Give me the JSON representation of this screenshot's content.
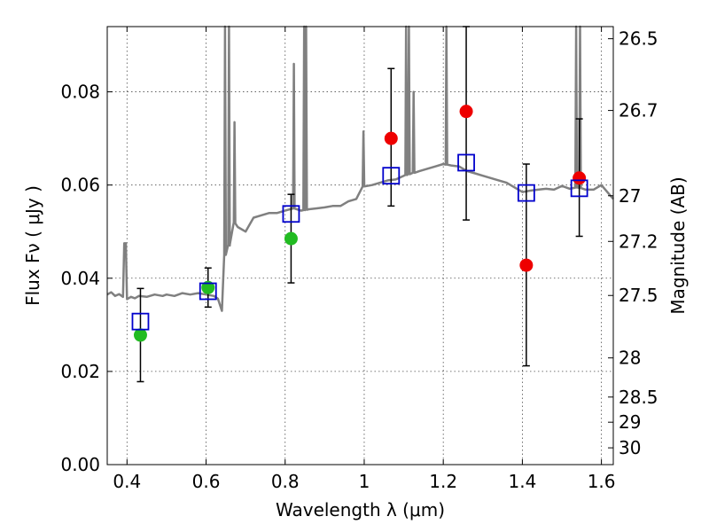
{
  "chart_data": {
    "type": "scatter",
    "xlabel": "Wavelength  λ (μm)",
    "ylabel": "Flux  Fν  ( μJy )",
    "y2label": "Magnitude (AB)",
    "xlim": [
      0.35,
      1.63
    ],
    "ylim": [
      0.0,
      0.094
    ],
    "grid": true,
    "x_ticks": [
      {
        "value": 0.4,
        "label": "0.4"
      },
      {
        "value": 0.6,
        "label": "0.6"
      },
      {
        "value": 0.8,
        "label": "0.8"
      },
      {
        "value": 1.0,
        "label": "1"
      },
      {
        "value": 1.2,
        "label": "1.2"
      },
      {
        "value": 1.4,
        "label": "1.4"
      },
      {
        "value": 1.6,
        "label": "1.6"
      }
    ],
    "y_ticks": [
      {
        "value": 0.0,
        "label": "0.00"
      },
      {
        "value": 0.02,
        "label": "0.02"
      },
      {
        "value": 0.04,
        "label": "0.04"
      },
      {
        "value": 0.06,
        "label": "0.06"
      },
      {
        "value": 0.08,
        "label": "0.08"
      }
    ],
    "mag_ticks": [
      {
        "label": "26.5",
        "flux": 0.0914
      },
      {
        "label": "26.7",
        "flux": 0.076
      },
      {
        "label": "27",
        "flux": 0.0577
      },
      {
        "label": "27.2",
        "flux": 0.0479
      },
      {
        "label": "27.5",
        "flux": 0.0363
      },
      {
        "label": "28",
        "flux": 0.0229
      },
      {
        "label": "28.5",
        "flux": 0.0145
      },
      {
        "label": "29",
        "flux": 0.0091
      },
      {
        "label": "30",
        "flux": 0.0036
      }
    ],
    "spectrum": {
      "color": "#808080",
      "x": [
        0.35,
        0.36,
        0.37,
        0.38,
        0.39,
        0.395,
        0.4,
        0.41,
        0.42,
        0.43,
        0.45,
        0.47,
        0.49,
        0.5,
        0.52,
        0.54,
        0.56,
        0.58,
        0.6,
        0.62,
        0.63,
        0.64,
        0.65,
        0.66,
        0.67,
        0.68,
        0.7,
        0.72,
        0.74,
        0.76,
        0.78,
        0.8,
        0.82,
        0.84,
        0.86,
        0.88,
        0.9,
        0.92,
        0.94,
        0.96,
        0.98,
        1.0,
        1.02,
        1.04,
        1.06,
        1.08,
        1.1,
        1.12,
        1.14,
        1.16,
        1.18,
        1.2,
        1.22,
        1.24,
        1.26,
        1.28,
        1.3,
        1.32,
        1.34,
        1.36,
        1.38,
        1.4,
        1.42,
        1.44,
        1.46,
        1.48,
        1.5,
        1.52,
        1.54,
        1.56,
        1.58,
        1.6,
        1.62,
        1.63
      ],
      "y": [
        0.0365,
        0.037,
        0.0362,
        0.0366,
        0.036,
        0.0475,
        0.0355,
        0.036,
        0.0357,
        0.0362,
        0.036,
        0.0365,
        0.0362,
        0.0365,
        0.0362,
        0.0368,
        0.0365,
        0.0368,
        0.0365,
        0.0362,
        0.0356,
        0.033,
        0.048,
        0.047,
        0.052,
        0.051,
        0.05,
        0.053,
        0.0535,
        0.054,
        0.054,
        0.0545,
        0.055,
        0.0545,
        0.0548,
        0.055,
        0.0552,
        0.0555,
        0.0555,
        0.0565,
        0.057,
        0.06,
        0.06,
        0.0605,
        0.061,
        0.0612,
        0.062,
        0.0625,
        0.063,
        0.0635,
        0.064,
        0.0645,
        0.0642,
        0.064,
        0.063,
        0.0625,
        0.062,
        0.0615,
        0.061,
        0.0605,
        0.0595,
        0.0585,
        0.0588,
        0.059,
        0.0592,
        0.059,
        0.0598,
        0.0592,
        0.0595,
        0.059,
        0.059,
        0.06,
        0.058,
        0.057
      ],
      "spikes": [
        {
          "x": 0.395,
          "peak": 0.0475
        },
        {
          "x": 0.648,
          "peak": 0.094
        },
        {
          "x": 0.658,
          "peak": 0.094
        },
        {
          "x": 0.672,
          "peak": 0.0735
        },
        {
          "x": 0.822,
          "peak": 0.086
        },
        {
          "x": 0.848,
          "peak": 0.094
        },
        {
          "x": 0.853,
          "peak": 0.094
        },
        {
          "x": 0.998,
          "peak": 0.0715
        },
        {
          "x": 1.106,
          "peak": 0.094
        },
        {
          "x": 1.113,
          "peak": 0.094
        },
        {
          "x": 1.125,
          "peak": 0.08
        },
        {
          "x": 1.208,
          "peak": 0.094
        },
        {
          "x": 1.536,
          "peak": 0.094
        },
        {
          "x": 1.546,
          "peak": 0.094
        }
      ]
    },
    "model_points": {
      "color": "#0000cc",
      "x": [
        0.434,
        0.605,
        0.815,
        1.068,
        1.258,
        1.41,
        1.544
      ],
      "y": [
        0.0307,
        0.0372,
        0.0538,
        0.062,
        0.0648,
        0.0583,
        0.0593
      ]
    },
    "observed_points": {
      "colors": {
        "optical": "#22bb22",
        "nir": "#ee0000"
      },
      "x": [
        0.434,
        0.605,
        0.815,
        1.068,
        1.258,
        1.41,
        1.544
      ],
      "y": [
        0.0278,
        0.038,
        0.0485,
        0.07,
        0.0758,
        0.0428,
        0.0615
      ],
      "err_low": [
        0.0178,
        0.0338,
        0.039,
        0.0555,
        0.0525,
        0.0212,
        0.049
      ],
      "err_high": [
        0.0378,
        0.0422,
        0.058,
        0.085,
        0.094,
        0.0645,
        0.0742
      ],
      "band": [
        "optical",
        "optical",
        "optical",
        "nir",
        "nir",
        "nir",
        "nir"
      ]
    }
  }
}
